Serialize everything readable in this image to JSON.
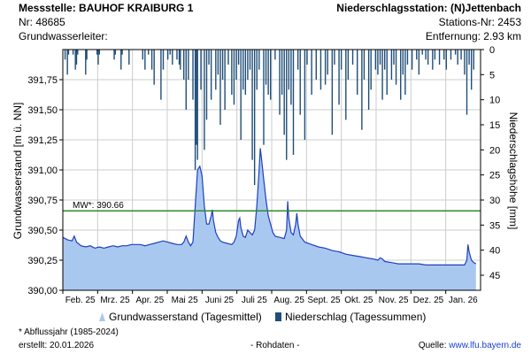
{
  "header": {
    "station_label": "Messstelle: BAUHOF KRAIBURG 1",
    "station_nr": "Nr: 48685",
    "aquifer": "Grundwasserleiter:",
    "precip_station": "Niederschlagsstation: (N)Jettenbach",
    "precip_station_nr": "Stations-Nr: 2453",
    "distance": "Entfernung: 2.93 km"
  },
  "footer": {
    "note": "* Abflussjahr (1985-2024)",
    "created": "erstellt:  20.01.2026",
    "raw": "- Rohdaten -",
    "source_label": "Quelle:",
    "source_url": "www.lfu.bayern.de"
  },
  "legend": {
    "gw": "Grundwasserstand (Tagesmittel)",
    "precip": "Niederschlag (Tagessummen)"
  },
  "colors": {
    "gw_fill": "#a9c8f0",
    "gw_line": "#1f3fbf",
    "precip": "#1f4e79",
    "mw_line": "#2e8b2e",
    "grid": "#cccccc"
  },
  "chart_data": {
    "type": "area",
    "xlabel": "",
    "ylabel": "Grundwasserstand [m ü. NN]",
    "y2label": "Niederschlagshöhe [mm]",
    "ylim": [
      390.0,
      392.0
    ],
    "y2lim": [
      0,
      48
    ],
    "y2_reversed": true,
    "grid": true,
    "legend_position": "bottom",
    "x_ticks": [
      "Feb. 25",
      "Mrz. 25",
      "Apr. 25",
      "Mai 25",
      "Juni 25",
      "Juli 25",
      "Aug. 25",
      "Sept. 25",
      "Okt. 25",
      "Nov. 25",
      "Dez. 25",
      "Jan. 26"
    ],
    "y_ticks": [
      "390,00",
      "390,25",
      "390,50",
      "390,75",
      "391,00",
      "391,25",
      "391,50",
      "391,75"
    ],
    "y2_ticks": [
      "0",
      "5",
      "10",
      "15",
      "20",
      "25",
      "30",
      "35",
      "40",
      "45"
    ],
    "mw": {
      "label": "MW*: 390.66",
      "value": 390.66
    },
    "x_range_days": [
      0,
      366
    ],
    "groundwater": {
      "name": "Grundwasserstand (Tagesmittel)",
      "points": [
        [
          0,
          390.44
        ],
        [
          4,
          390.42
        ],
        [
          8,
          390.41
        ],
        [
          10,
          390.45
        ],
        [
          12,
          390.4
        ],
        [
          16,
          390.37
        ],
        [
          20,
          390.36
        ],
        [
          24,
          390.37
        ],
        [
          28,
          390.35
        ],
        [
          32,
          390.36
        ],
        [
          36,
          390.35
        ],
        [
          40,
          390.36
        ],
        [
          44,
          390.37
        ],
        [
          48,
          390.36
        ],
        [
          52,
          390.37
        ],
        [
          56,
          390.37
        ],
        [
          60,
          390.38
        ],
        [
          64,
          390.38
        ],
        [
          68,
          390.38
        ],
        [
          72,
          390.37
        ],
        [
          76,
          390.38
        ],
        [
          80,
          390.39
        ],
        [
          84,
          390.4
        ],
        [
          88,
          390.41
        ],
        [
          92,
          390.4
        ],
        [
          96,
          390.39
        ],
        [
          100,
          390.38
        ],
        [
          104,
          390.38
        ],
        [
          106,
          390.4
        ],
        [
          108,
          390.45
        ],
        [
          110,
          390.4
        ],
        [
          112,
          390.37
        ],
        [
          114,
          390.4
        ],
        [
          116,
          390.7
        ],
        [
          118,
          391.0
        ],
        [
          120,
          391.03
        ],
        [
          122,
          390.95
        ],
        [
          124,
          390.7
        ],
        [
          126,
          390.55
        ],
        [
          128,
          390.55
        ],
        [
          130,
          390.62
        ],
        [
          131,
          390.67
        ],
        [
          132,
          390.58
        ],
        [
          134,
          390.48
        ],
        [
          136,
          390.44
        ],
        [
          138,
          390.41
        ],
        [
          140,
          390.4
        ],
        [
          144,
          390.39
        ],
        [
          148,
          390.38
        ],
        [
          150,
          390.4
        ],
        [
          152,
          390.45
        ],
        [
          154,
          390.58
        ],
        [
          155,
          390.6
        ],
        [
          156,
          390.52
        ],
        [
          158,
          390.45
        ],
        [
          160,
          390.44
        ],
        [
          162,
          390.5
        ],
        [
          164,
          390.48
        ],
        [
          166,
          390.46
        ],
        [
          168,
          390.5
        ],
        [
          170,
          390.7
        ],
        [
          172,
          391.0
        ],
        [
          173,
          391.18
        ],
        [
          174,
          391.1
        ],
        [
          176,
          390.92
        ],
        [
          178,
          390.75
        ],
        [
          180,
          390.62
        ],
        [
          182,
          390.55
        ],
        [
          184,
          390.48
        ],
        [
          186,
          390.45
        ],
        [
          190,
          390.44
        ],
        [
          194,
          390.43
        ],
        [
          196,
          390.5
        ],
        [
          197,
          390.74
        ],
        [
          198,
          390.6
        ],
        [
          200,
          390.48
        ],
        [
          202,
          390.46
        ],
        [
          204,
          390.55
        ],
        [
          205,
          390.64
        ],
        [
          206,
          390.55
        ],
        [
          208,
          390.45
        ],
        [
          212,
          390.4
        ],
        [
          218,
          390.38
        ],
        [
          224,
          390.36
        ],
        [
          230,
          390.35
        ],
        [
          236,
          390.33
        ],
        [
          242,
          390.32
        ],
        [
          248,
          390.3
        ],
        [
          254,
          390.29
        ],
        [
          260,
          390.28
        ],
        [
          266,
          390.27
        ],
        [
          272,
          390.26
        ],
        [
          276,
          390.25
        ],
        [
          278,
          390.27
        ],
        [
          280,
          390.26
        ],
        [
          282,
          390.24
        ],
        [
          288,
          390.23
        ],
        [
          294,
          390.22
        ],
        [
          300,
          390.22
        ],
        [
          306,
          390.22
        ],
        [
          312,
          390.22
        ],
        [
          318,
          390.21
        ],
        [
          324,
          390.21
        ],
        [
          330,
          390.21
        ],
        [
          336,
          390.21
        ],
        [
          342,
          390.21
        ],
        [
          348,
          390.21
        ],
        [
          352,
          390.21
        ],
        [
          354,
          390.25
        ],
        [
          355,
          390.38
        ],
        [
          356,
          390.32
        ],
        [
          358,
          390.25
        ],
        [
          360,
          390.23
        ],
        [
          362,
          390.22
        ]
      ]
    },
    "precipitation": {
      "name": "Niederschlag (Tagessummen)",
      "points": [
        [
          2,
          2
        ],
        [
          4,
          5
        ],
        [
          5,
          1
        ],
        [
          9,
          1
        ],
        [
          11,
          4
        ],
        [
          12,
          3
        ],
        [
          13,
          1
        ],
        [
          20,
          5
        ],
        [
          21,
          2
        ],
        [
          30,
          1
        ],
        [
          31,
          3
        ],
        [
          32,
          1
        ],
        [
          45,
          2
        ],
        [
          46,
          1
        ],
        [
          51,
          4
        ],
        [
          52,
          1
        ],
        [
          58,
          3
        ],
        [
          70,
          2
        ],
        [
          72,
          4
        ],
        [
          75,
          1
        ],
        [
          78,
          4
        ],
        [
          80,
          7
        ],
        [
          86,
          10
        ],
        [
          88,
          4
        ],
        [
          92,
          2
        ],
        [
          94,
          1
        ],
        [
          96,
          3
        ],
        [
          100,
          2
        ],
        [
          102,
          3
        ],
        [
          103,
          4
        ],
        [
          106,
          6
        ],
        [
          108,
          12
        ],
        [
          110,
          6
        ],
        [
          114,
          10
        ],
        [
          116,
          24
        ],
        [
          117,
          19
        ],
        [
          118,
          22
        ],
        [
          121,
          8
        ],
        [
          124,
          20
        ],
        [
          126,
          14
        ],
        [
          128,
          3
        ],
        [
          130,
          10
        ],
        [
          134,
          8
        ],
        [
          136,
          5
        ],
        [
          138,
          15
        ],
        [
          140,
          6
        ],
        [
          142,
          12
        ],
        [
          145,
          3
        ],
        [
          148,
          9
        ],
        [
          150,
          11
        ],
        [
          152,
          6
        ],
        [
          154,
          3
        ],
        [
          156,
          18
        ],
        [
          158,
          8
        ],
        [
          160,
          9
        ],
        [
          162,
          6
        ],
        [
          164,
          4
        ],
        [
          166,
          22
        ],
        [
          168,
          27
        ],
        [
          170,
          8
        ],
        [
          172,
          4
        ],
        [
          176,
          19
        ],
        [
          178,
          7
        ],
        [
          180,
          9
        ],
        [
          182,
          10
        ],
        [
          186,
          2
        ],
        [
          190,
          13
        ],
        [
          192,
          9
        ],
        [
          194,
          17
        ],
        [
          196,
          22
        ],
        [
          198,
          8
        ],
        [
          200,
          11
        ],
        [
          202,
          21
        ],
        [
          206,
          4
        ],
        [
          208,
          13
        ],
        [
          212,
          18
        ],
        [
          214,
          3
        ],
        [
          218,
          9
        ],
        [
          222,
          6
        ],
        [
          226,
          8
        ],
        [
          230,
          7
        ],
        [
          232,
          5
        ],
        [
          236,
          17
        ],
        [
          238,
          3
        ],
        [
          242,
          11
        ],
        [
          244,
          4
        ],
        [
          248,
          14
        ],
        [
          250,
          6
        ],
        [
          254,
          3
        ],
        [
          258,
          9
        ],
        [
          262,
          16
        ],
        [
          264,
          6
        ],
        [
          268,
          12
        ],
        [
          270,
          8
        ],
        [
          274,
          4
        ],
        [
          276,
          5
        ],
        [
          278,
          3
        ],
        [
          280,
          10
        ],
        [
          282,
          4
        ],
        [
          284,
          9
        ],
        [
          288,
          6
        ],
        [
          290,
          3
        ],
        [
          292,
          7
        ],
        [
          296,
          10
        ],
        [
          298,
          5
        ],
        [
          300,
          9
        ],
        [
          302,
          3
        ],
        [
          306,
          4
        ],
        [
          310,
          2
        ],
        [
          312,
          5
        ],
        [
          315,
          1
        ],
        [
          318,
          2
        ],
        [
          320,
          3
        ],
        [
          324,
          4
        ],
        [
          326,
          2
        ],
        [
          330,
          3
        ],
        [
          334,
          2
        ],
        [
          336,
          4
        ],
        [
          340,
          2
        ],
        [
          344,
          1
        ],
        [
          346,
          3
        ],
        [
          349,
          2
        ],
        [
          352,
          5
        ],
        [
          354,
          13
        ],
        [
          356,
          3
        ],
        [
          358,
          8
        ],
        [
          360,
          4
        ]
      ]
    }
  }
}
